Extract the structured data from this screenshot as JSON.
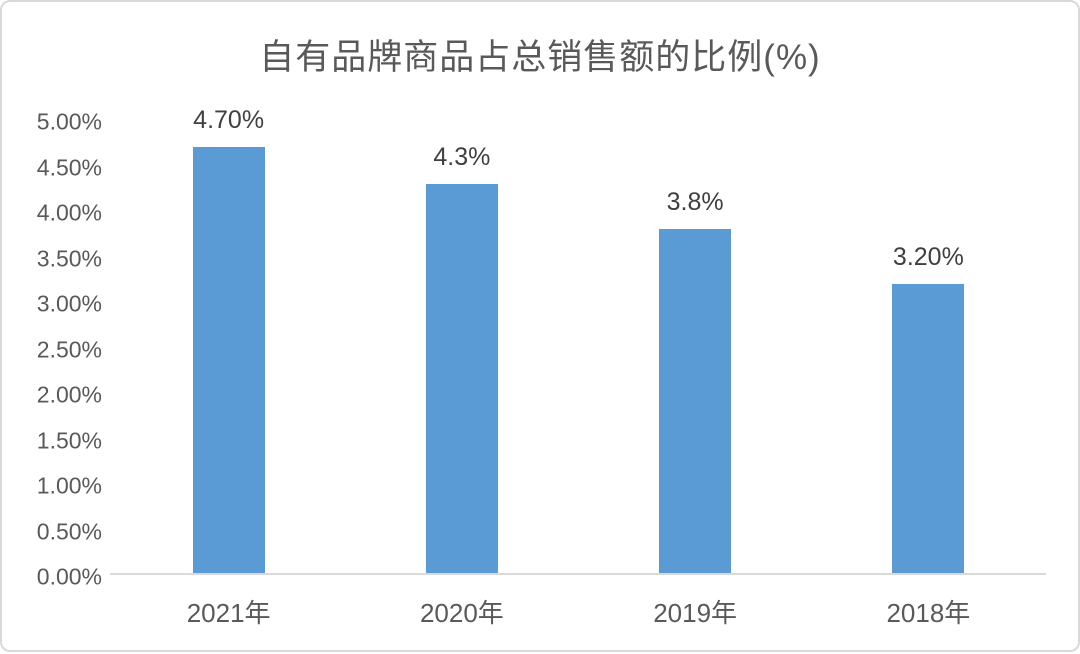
{
  "chart_data": {
    "type": "bar",
    "title": "自有品牌商品占总销售额的比例(%)",
    "categories": [
      "2021年",
      "2020年",
      "2019年",
      "2018年"
    ],
    "values": [
      4.7,
      4.3,
      3.8,
      3.2
    ],
    "data_labels": [
      "4.70%",
      "4.3%",
      "3.8%",
      "3.20%"
    ],
    "y_tick_labels": [
      "5.00%",
      "4.50%",
      "4.00%",
      "3.50%",
      "3.00%",
      "2.50%",
      "2.00%",
      "1.50%",
      "1.00%",
      "0.50%",
      "0.00%"
    ],
    "y_tick_values": [
      5,
      4.5,
      4,
      3.5,
      3,
      2.5,
      2,
      1.5,
      1,
      0.5,
      0
    ],
    "ylim": [
      0,
      5
    ],
    "xlabel": "",
    "ylabel": "",
    "grid": false,
    "legend": "none",
    "colors": {
      "bar": "#5b9bd5",
      "axis_line": "#d9d9d9",
      "frame_border": "#d9d9d9",
      "background": "#ffffff",
      "title_text": "#595959",
      "tick_text": "#595959",
      "x_label_text": "#595959",
      "data_label_text": "#3f3f3f"
    }
  }
}
